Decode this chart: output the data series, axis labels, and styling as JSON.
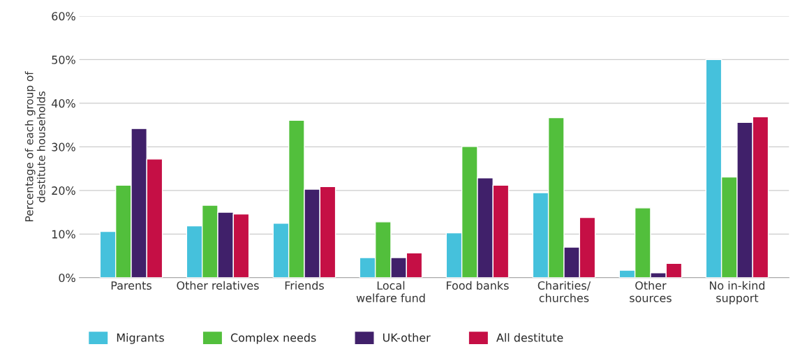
{
  "chart_data": {
    "type": "bar",
    "ylabel": "Percentage of each group of\ndestitute households",
    "categories": [
      "Parents",
      "Other relatives",
      "Friends",
      "Local\nwelfare fund",
      "Food banks",
      "Charities/\nchurches",
      "Other\nsources",
      "No in-kind\nsupport"
    ],
    "series": [
      {
        "name": "Migrants",
        "color": "#45c1dc",
        "values": [
          10.6,
          11.9,
          12.5,
          4.6,
          10.3,
          19.5,
          1.7,
          50.0
        ]
      },
      {
        "name": "Complex needs",
        "color": "#52bf3c",
        "values": [
          21.2,
          16.6,
          36.1,
          12.8,
          30.1,
          36.7,
          16.0,
          23.1
        ]
      },
      {
        "name": "UK-other",
        "color": "#40206a",
        "values": [
          34.2,
          15.0,
          20.3,
          4.6,
          22.9,
          7.0,
          1.1,
          35.6
        ]
      },
      {
        "name": "All destitute",
        "color": "#c50f45",
        "values": [
          27.2,
          14.6,
          20.9,
          5.7,
          21.2,
          13.8,
          3.3,
          36.9
        ]
      }
    ],
    "ylim": [
      0,
      60
    ],
    "yticks": [
      {
        "value": 0,
        "label": "0%"
      },
      {
        "value": 10,
        "label": "10%"
      },
      {
        "value": 20,
        "label": "20%"
      },
      {
        "value": 30,
        "label": "30%"
      },
      {
        "value": 40,
        "label": "40%"
      },
      {
        "value": 50,
        "label": "50%"
      },
      {
        "value": 60,
        "label": "60%"
      }
    ],
    "grid": "y",
    "legend": "bottom"
  }
}
